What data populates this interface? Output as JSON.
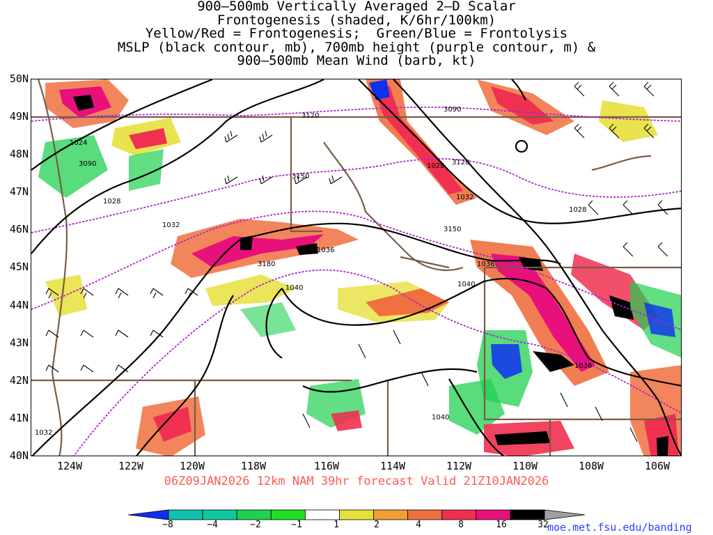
{
  "title_lines": [
    "900–500mb Vertically Averaged 2–D Scalar",
    "Frontogenesis (shaded, K/6hr/100km)",
    "Yellow/Red = Frontogenesis;  Green/Blue = Frontolysis",
    "MSLP (black contour, mb), 700mb height (purple contour, m) &",
    "900–500mb Mean Wind (barb, kt)"
  ],
  "lat_labels": [
    "50N",
    "49N",
    "48N",
    "47N",
    "46N",
    "45N",
    "44N",
    "43N",
    "42N",
    "41N",
    "40N"
  ],
  "lon_labels": [
    "124W",
    "122W",
    "120W",
    "118W",
    "116W",
    "114W",
    "112W",
    "110W",
    "108W",
    "106W"
  ],
  "forecast_line": "06Z09JAN2026 12km NAM 39hr forecast Valid 21Z10JAN2026",
  "colorbar": {
    "tick_labels": [
      "−8",
      "−4",
      "−2",
      "−1",
      "1",
      "2",
      "4",
      "8",
      "16",
      "32"
    ],
    "colors": [
      "#1030f0",
      "#10c0b0",
      "#10c8a0",
      "#20d050",
      "#20e020",
      "#ffffff",
      "#e6e03c",
      "#f0a030",
      "#f07040",
      "#f03050",
      "#e8107a",
      "#000000",
      "#a0a0a0"
    ]
  },
  "mslp_labels": [
    "1024",
    "1028",
    "1032",
    "1036",
    "1040",
    "1028",
    "1032",
    "1036",
    "1040",
    "1036",
    "1028",
    "1032",
    "1040"
  ],
  "height_labels": [
    "3090",
    "3120",
    "3150",
    "3180",
    "3090",
    "3120",
    "3150"
  ],
  "credit": "moe.met.fsu.edu/banding",
  "colors": {
    "mslp": "#000000",
    "height": "#b020d0",
    "borders": "#7a5a48",
    "forecast_text": "#ff5a50",
    "credit_text": "#2a3cff"
  }
}
